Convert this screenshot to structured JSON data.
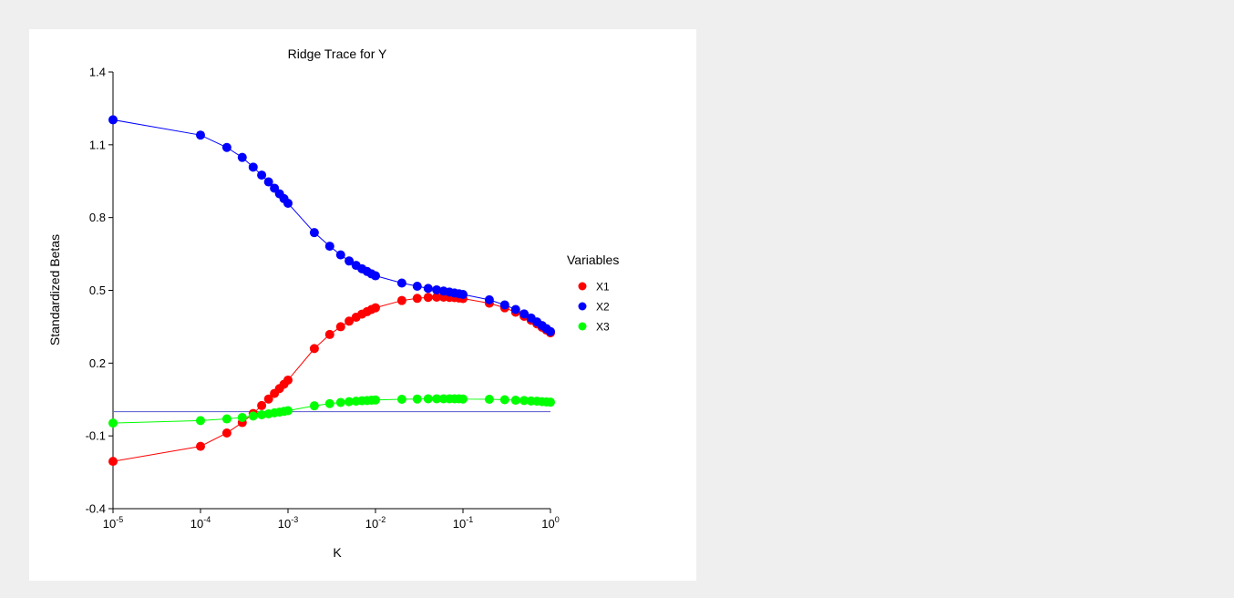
{
  "chart_data": {
    "type": "scatter",
    "title": "Ridge Trace for Y",
    "xlabel": "K",
    "ylabel": "Standardized Betas",
    "x_scale": "log10",
    "xlim": [
      1e-05,
      1
    ],
    "ylim": [
      -0.4,
      1.4
    ],
    "x_ticks": [
      {
        "value": 1e-05,
        "base": "10",
        "exp": "-5"
      },
      {
        "value": 0.0001,
        "base": "10",
        "exp": "-4"
      },
      {
        "value": 0.001,
        "base": "10",
        "exp": "-3"
      },
      {
        "value": 0.01,
        "base": "10",
        "exp": "-2"
      },
      {
        "value": 0.1,
        "base": "10",
        "exp": "-1"
      },
      {
        "value": 1,
        "base": "10",
        "exp": "0"
      }
    ],
    "y_ticks": [
      {
        "value": -0.4,
        "label": "-0.4"
      },
      {
        "value": -0.1,
        "label": "-0.1"
      },
      {
        "value": 0.2,
        "label": "0.2"
      },
      {
        "value": 0.5,
        "label": "0.5"
      },
      {
        "value": 0.8,
        "label": "0.8"
      },
      {
        "value": 1.1,
        "label": "1.1"
      },
      {
        "value": 1.4,
        "label": "1.4"
      }
    ],
    "reference_line": {
      "y": 0,
      "color": "#6b6bd6"
    },
    "legend": {
      "title": "Variables",
      "placement": "right"
    },
    "grid": false,
    "x": [
      1e-05,
      0.0001,
      0.0002,
      0.0003,
      0.0004,
      0.0005,
      0.0006,
      0.0007,
      0.0008,
      0.0009,
      0.001,
      0.002,
      0.003,
      0.004,
      0.005,
      0.006,
      0.007,
      0.008,
      0.009,
      0.01,
      0.02,
      0.03,
      0.04,
      0.05,
      0.06,
      0.07,
      0.08,
      0.09,
      0.1,
      0.2,
      0.3,
      0.4,
      0.5,
      0.6,
      0.7,
      0.8,
      0.9,
      1
    ],
    "series": [
      {
        "name": "X1",
        "color": "#ff0000",
        "values": [
          -0.205,
          -0.143,
          -0.088,
          -0.045,
          -0.008,
          0.025,
          0.052,
          0.075,
          0.095,
          0.113,
          0.13,
          0.26,
          0.318,
          0.35,
          0.373,
          0.389,
          0.402,
          0.412,
          0.421,
          0.428,
          0.458,
          0.467,
          0.471,
          0.472,
          0.472,
          0.471,
          0.47,
          0.468,
          0.466,
          0.447,
          0.428,
          0.41,
          0.393,
          0.377,
          0.362,
          0.348,
          0.336,
          0.325
        ]
      },
      {
        "name": "X2",
        "color": "#0000ff",
        "values": [
          1.203,
          1.14,
          1.089,
          1.048,
          1.008,
          0.975,
          0.947,
          0.921,
          0.898,
          0.878,
          0.859,
          0.738,
          0.682,
          0.646,
          0.621,
          0.603,
          0.589,
          0.578,
          0.568,
          0.56,
          0.53,
          0.517,
          0.508,
          0.502,
          0.497,
          0.493,
          0.489,
          0.486,
          0.483,
          0.461,
          0.44,
          0.421,
          0.403,
          0.386,
          0.37,
          0.355,
          0.342,
          0.33
        ]
      },
      {
        "name": "X3",
        "color": "#00ff00",
        "values": [
          -0.047,
          -0.037,
          -0.03,
          -0.024,
          -0.018,
          -0.013,
          -0.009,
          -0.005,
          -0.002,
          0.001,
          0.004,
          0.024,
          0.033,
          0.038,
          0.041,
          0.043,
          0.045,
          0.046,
          0.047,
          0.048,
          0.051,
          0.052,
          0.053,
          0.053,
          0.053,
          0.053,
          0.053,
          0.053,
          0.052,
          0.051,
          0.049,
          0.047,
          0.046,
          0.044,
          0.043,
          0.041,
          0.04,
          0.039
        ]
      }
    ]
  }
}
